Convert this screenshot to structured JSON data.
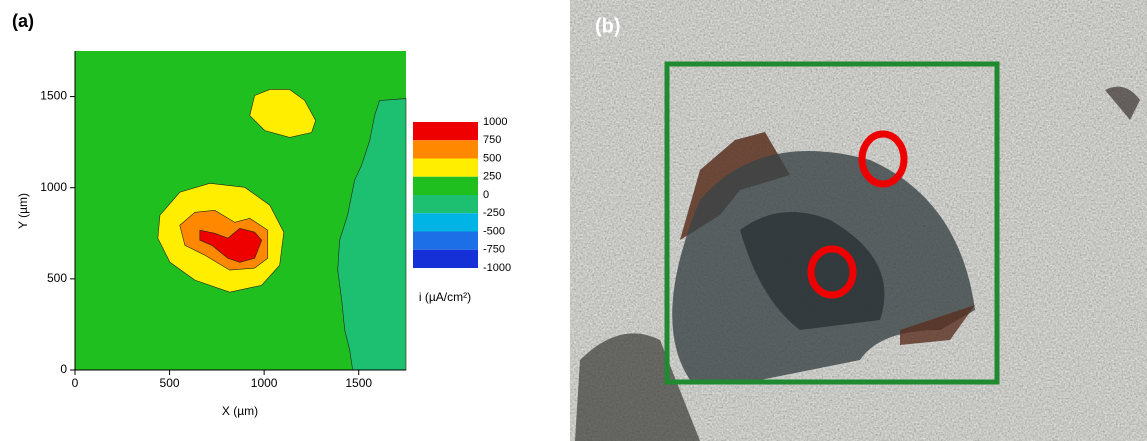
{
  "chart_data": {
    "type": "contour",
    "panel_label": "(a)",
    "xlabel": "X (µm)",
    "ylabel": "Y (µm)",
    "xlim": [
      0,
      1750
    ],
    "ylim": [
      0,
      1750
    ],
    "xticks": [
      0,
      500,
      1000,
      1500
    ],
    "yticks": [
      0,
      500,
      1000,
      1500
    ],
    "background_color": "#1fbf1f",
    "regions": [
      {
        "color": "#1dbf70",
        "x": [
          1750,
          1610,
          1584,
          1558,
          1515,
          1478,
          1441,
          1399,
          1389,
          1410,
          1426,
          1452,
          1468,
          1750
        ],
        "y": [
          1489,
          1478,
          1396,
          1259,
          1123,
          1040,
          849,
          712,
          548,
          383,
          219,
          110,
          0,
          0
        ]
      },
      {
        "color": "#ffee00",
        "x": [
          950,
          1030,
          1135,
          1214,
          1272,
          1251,
          1135,
          1003,
          924
        ],
        "y": [
          1506,
          1539,
          1539,
          1479,
          1369,
          1303,
          1276,
          1314,
          1396
        ]
      },
      {
        "color": "#ffee00",
        "x": [
          449,
          554,
          713,
          898,
          1030,
          1104,
          1082,
          987,
          818,
          634,
          502,
          438
        ],
        "y": [
          849,
          975,
          1024,
          1002,
          904,
          756,
          575,
          465,
          427,
          493,
          591,
          723
        ]
      },
      {
        "color": "#ff8800",
        "x": [
          554,
          634,
          739,
          845,
          924,
          1019,
          1019,
          950,
          818,
          686,
          581
        ],
        "y": [
          794,
          865,
          876,
          810,
          832,
          767,
          613,
          559,
          548,
          630,
          684
        ]
      },
      {
        "color": "#ee0000",
        "x": [
          660,
          739,
          808,
          871,
          950,
          987,
          950,
          871,
          808,
          723,
          660
        ],
        "y": [
          767,
          750,
          723,
          777,
          756,
          712,
          613,
          591,
          613,
          684,
          712
        ]
      }
    ],
    "colorbar": {
      "levels": [
        1000,
        750,
        500,
        250,
        0,
        -250,
        -500,
        -750,
        -1000
      ],
      "colors": [
        "#ee0000",
        "#ff8800",
        "#ffee00",
        "#1fbf1f",
        "#1dbf70",
        "#00b4e6",
        "#1c6fe6",
        "#1630d8"
      ],
      "label": "i (µA/cm²)"
    }
  },
  "image_panel": {
    "label": "(b)"
  }
}
